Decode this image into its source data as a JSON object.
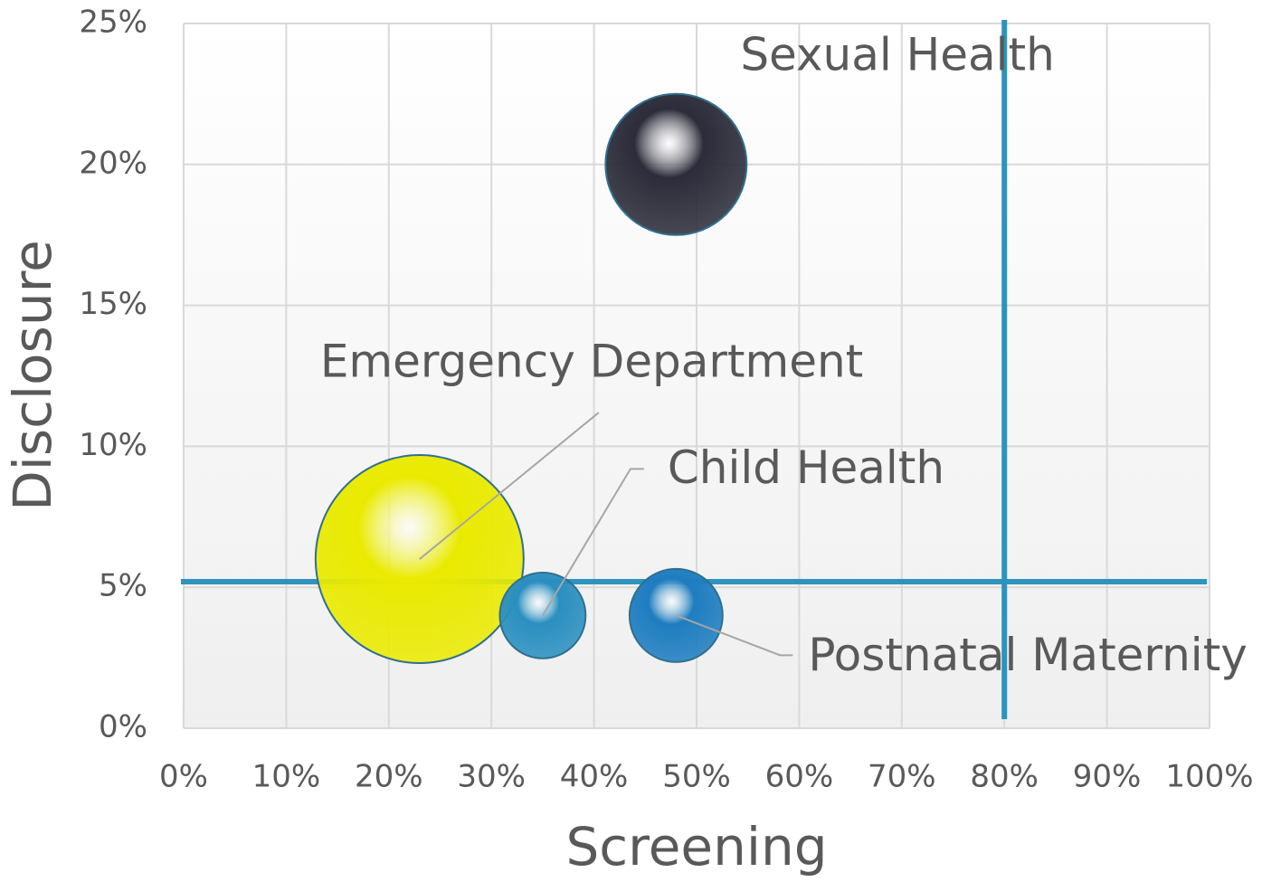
{
  "chart_data": {
    "type": "bubble",
    "x_label": "Screening",
    "y_label": "Disclosure",
    "xlim": [
      0,
      100
    ],
    "ylim": [
      0,
      25
    ],
    "xticks": [
      {
        "value": 0,
        "label": "0%"
      },
      {
        "value": 10,
        "label": "10%"
      },
      {
        "value": 20,
        "label": "20%"
      },
      {
        "value": 30,
        "label": "30%"
      },
      {
        "value": 40,
        "label": "40%"
      },
      {
        "value": 50,
        "label": "50%"
      },
      {
        "value": 60,
        "label": "60%"
      },
      {
        "value": 70,
        "label": "70%"
      },
      {
        "value": 80,
        "label": "80%"
      },
      {
        "value": 90,
        "label": "90%"
      },
      {
        "value": 100,
        "label": "100%"
      }
    ],
    "yticks": [
      {
        "value": 0,
        "label": "0%"
      },
      {
        "value": 5,
        "label": "5%"
      },
      {
        "value": 10,
        "label": "10%"
      },
      {
        "value": 15,
        "label": "15%"
      },
      {
        "value": 20,
        "label": "20%"
      },
      {
        "value": 25,
        "label": "25%"
      }
    ],
    "grid": true,
    "reference_lines": {
      "x": 80,
      "y": 5.2,
      "color": "#2e93bd"
    },
    "series": [
      {
        "name": "Emergency Department",
        "color": "#eaea00",
        "x": [
          23
        ],
        "values": [
          6
        ],
        "sizes": [
          100
        ]
      },
      {
        "name": "Child Health",
        "color": "#2a8fc0",
        "x": [
          35
        ],
        "values": [
          4
        ],
        "sizes": [
          17
        ]
      },
      {
        "name": "Postnatal Maternity",
        "color": "#1e7dc0",
        "x": [
          48
        ],
        "values": [
          4
        ],
        "sizes": [
          20
        ]
      },
      {
        "name": "Sexual Health",
        "color": "#2c2c3a",
        "x": [
          48
        ],
        "values": [
          20
        ],
        "sizes": [
          46
        ]
      }
    ]
  }
}
